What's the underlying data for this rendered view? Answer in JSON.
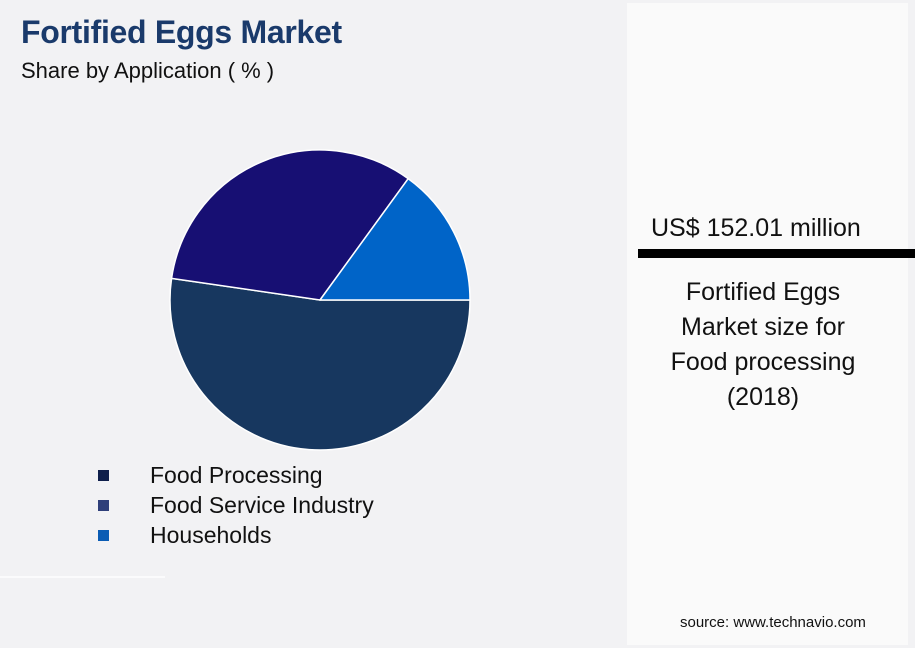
{
  "header": {
    "title": "Fortified Eggs Market",
    "subtitle": "Share by Application ( % )"
  },
  "colors": {
    "title": "#1a3a6b",
    "food_processing": "#17375f",
    "food_service_industry": "#170f73",
    "households": "#0064c8",
    "legend_food_processing": "#0f1f4b",
    "legend_food_service_industry": "#2f3f7a",
    "legend_households": "#0a5cb4"
  },
  "legend": {
    "items": [
      {
        "label": "Food Processing"
      },
      {
        "label": "Food Service Industry"
      },
      {
        "label": "Households"
      }
    ]
  },
  "panel": {
    "metric_value": "US$ 152.01 million",
    "caption_lines": [
      "Fortified Eggs",
      "Market size for",
      "Food processing",
      "(2018)"
    ],
    "source": "source: www.technavio.com"
  },
  "chart_data": {
    "type": "pie",
    "title": "Fortified Eggs Market",
    "subtitle": "Share by Application ( % )",
    "categories": [
      "Food Processing",
      "Food Service Industry",
      "Households"
    ],
    "values": [
      52.3,
      32.7,
      15.0
    ],
    "unit": "%",
    "data_labels": false,
    "legend_position": "bottom-left",
    "start_angle_deg": 0,
    "direction": "clockwise-from-east for Food Processing",
    "annotation": {
      "value": "US$ 152.01 million",
      "text": "Fortified Eggs Market size for Food processing (2018)"
    },
    "source": "source: www.technavio.com"
  }
}
